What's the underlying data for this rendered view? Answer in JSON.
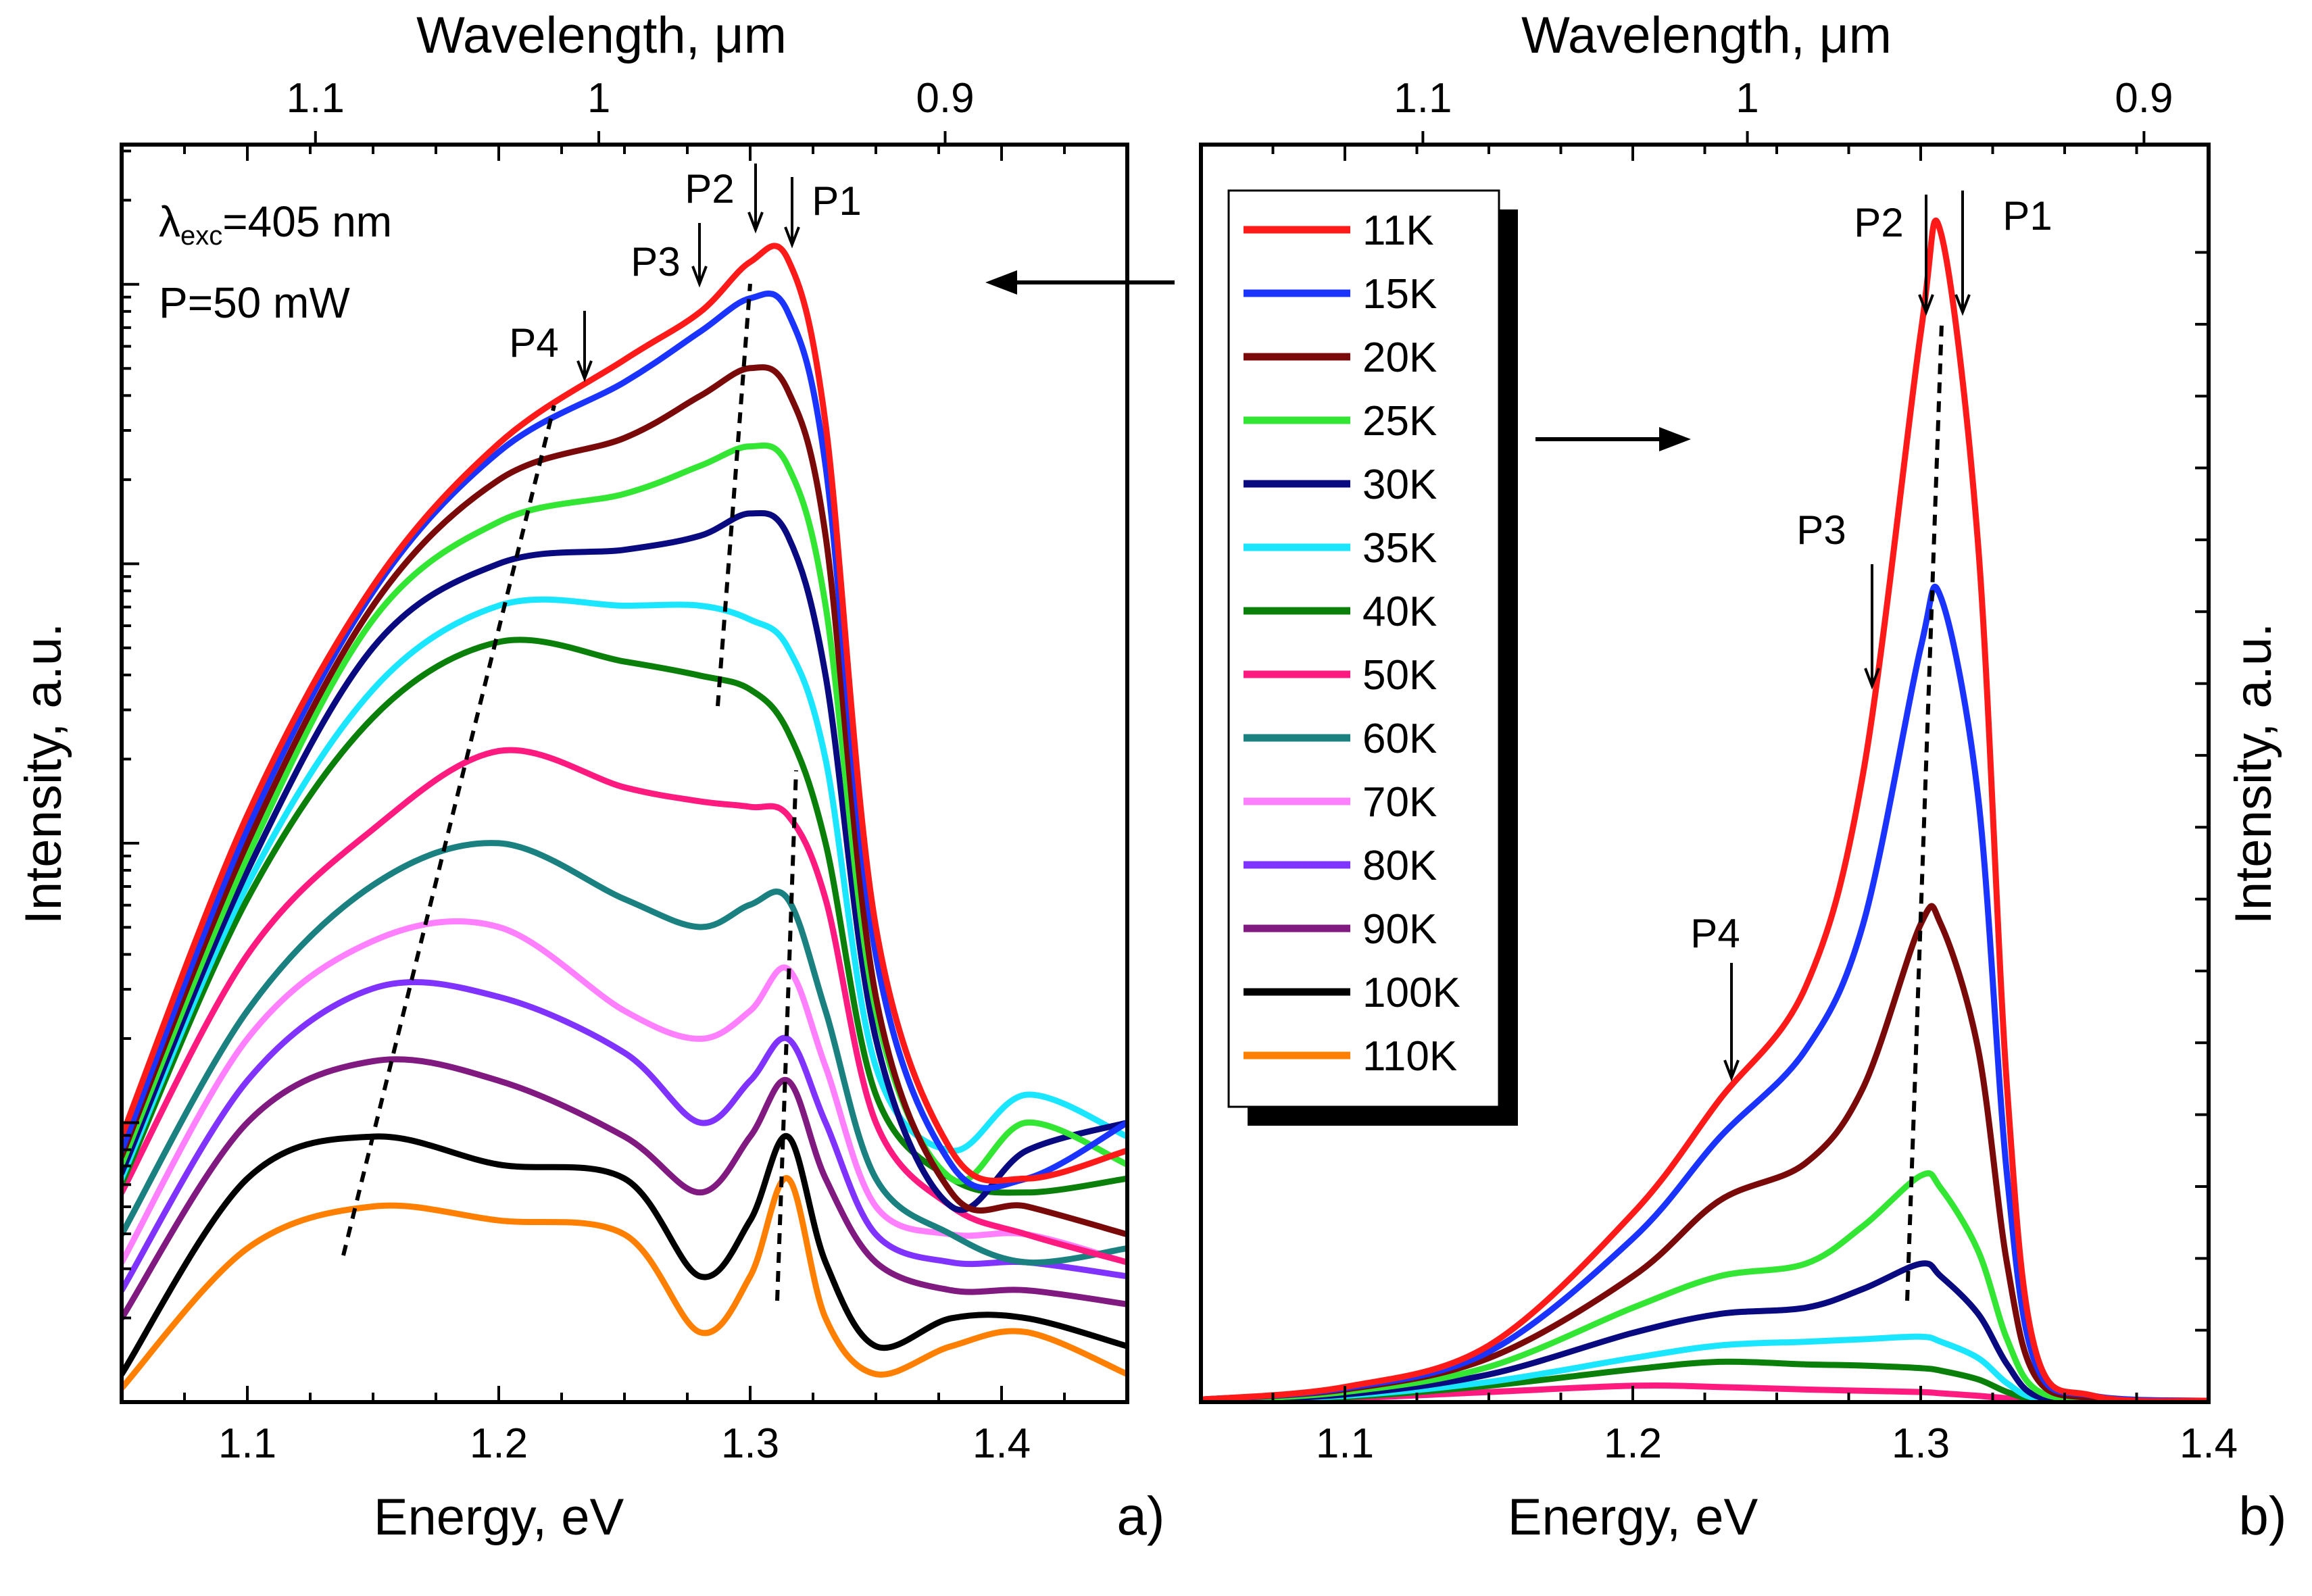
{
  "chart_data": [
    {
      "panel": "a)",
      "type": "line",
      "xlabel": "Energy, eV",
      "ylabel": "Intensity, a.u.",
      "top_xlabel": "Wavelength, μm",
      "yscale": "log",
      "xlim": [
        1.05,
        1.45
      ],
      "ylim_decades": [
        0,
        4.5
      ],
      "x_ticks": [
        "1.1",
        "1.2",
        "1.3",
        "1.4"
      ],
      "top_ticks": [
        "1.1",
        "1",
        "0.9"
      ],
      "annotation_lambda": "λ",
      "annotation_exc": "exc",
      "annotation_lambda_value": "=405 nm",
      "annotation_power": "P=50 mW",
      "peaks": [
        "P1",
        "P2",
        "P3",
        "P4"
      ],
      "x": [
        1.05,
        1.1,
        1.15,
        1.2,
        1.25,
        1.28,
        1.3,
        1.315,
        1.33,
        1.35,
        1.38,
        1.41,
        1.45
      ],
      "series": [
        {
          "name": "11K",
          "color": "#ff1a1a",
          "values": [
            0.95,
            2.1,
            2.92,
            3.43,
            3.73,
            3.9,
            4.08,
            4.09,
            3.5,
            1.7,
            0.9,
            0.8,
            0.9
          ]
        },
        {
          "name": "15K",
          "color": "#1a33ff",
          "values": [
            0.9,
            2.05,
            2.9,
            3.4,
            3.65,
            3.83,
            3.95,
            3.9,
            3.35,
            1.6,
            0.85,
            0.8,
            1.0
          ]
        },
        {
          "name": "20K",
          "color": "#7a0a0a",
          "values": [
            0.88,
            2.0,
            2.85,
            3.3,
            3.45,
            3.6,
            3.7,
            3.62,
            3.1,
            1.45,
            0.75,
            0.7,
            0.6
          ]
        },
        {
          "name": "25K",
          "color": "#33e633",
          "values": [
            0.85,
            1.95,
            2.8,
            3.15,
            3.25,
            3.35,
            3.42,
            3.35,
            2.85,
            1.4,
            0.8,
            1.0,
            0.85
          ]
        },
        {
          "name": "30K",
          "color": "#0a0a80",
          "values": [
            0.82,
            1.9,
            2.7,
            3.0,
            3.05,
            3.1,
            3.18,
            3.1,
            2.6,
            1.3,
            0.7,
            0.9,
            1.0
          ]
        },
        {
          "name": "35K",
          "color": "#1ae6ff",
          "values": [
            0.8,
            1.85,
            2.55,
            2.85,
            2.85,
            2.85,
            2.8,
            2.7,
            2.3,
            1.2,
            0.9,
            1.1,
            0.95
          ]
        },
        {
          "name": "40K",
          "color": "#0a800a",
          "values": [
            0.78,
            1.8,
            2.45,
            2.72,
            2.65,
            2.6,
            2.55,
            2.4,
            2.0,
            1.1,
            0.8,
            0.75,
            0.8
          ]
        },
        {
          "name": "50K",
          "color": "#ff1a80",
          "values": [
            0.75,
            1.6,
            2.05,
            2.33,
            2.2,
            2.15,
            2.13,
            2.1,
            1.8,
            1.0,
            0.7,
            0.6,
            0.5
          ]
        },
        {
          "name": "60K",
          "color": "#1a8080",
          "values": [
            0.6,
            1.4,
            1.85,
            2.0,
            1.8,
            1.7,
            1.78,
            1.8,
            1.4,
            0.8,
            0.6,
            0.5,
            0.55
          ]
        },
        {
          "name": "70K",
          "color": "#ff80ff",
          "values": [
            0.5,
            1.3,
            1.65,
            1.7,
            1.4,
            1.3,
            1.4,
            1.55,
            1.2,
            0.7,
            0.6,
            0.6,
            0.5
          ]
        },
        {
          "name": "80K",
          "color": "#8033ff",
          "values": [
            0.4,
            1.15,
            1.48,
            1.45,
            1.25,
            1.0,
            1.15,
            1.3,
            1.0,
            0.6,
            0.5,
            0.5,
            0.45
          ]
        },
        {
          "name": "90K",
          "color": "#801a80",
          "values": [
            0.3,
            1.0,
            1.22,
            1.15,
            0.95,
            0.75,
            0.95,
            1.15,
            0.8,
            0.5,
            0.4,
            0.4,
            0.35
          ]
        },
        {
          "name": "100K",
          "color": "#000000",
          "values": [
            0.1,
            0.8,
            0.95,
            0.85,
            0.8,
            0.45,
            0.65,
            0.95,
            0.5,
            0.2,
            0.3,
            0.3,
            0.2
          ]
        },
        {
          "name": "110K",
          "color": "#ff8000",
          "values": [
            0.05,
            0.55,
            0.7,
            0.65,
            0.6,
            0.25,
            0.45,
            0.8,
            0.3,
            0.1,
            0.2,
            0.25,
            0.1
          ]
        }
      ]
    },
    {
      "panel": "b)",
      "type": "line",
      "xlabel": "Energy, eV",
      "ylabel": "Intensity, a.u.",
      "top_xlabel": "Wavelength, μm",
      "yscale": "linear",
      "xlim": [
        1.05,
        1.4
      ],
      "ylim": [
        0,
        100
      ],
      "x_ticks": [
        "1.1",
        "1.2",
        "1.3",
        "1.4"
      ],
      "top_ticks": [
        "1.1",
        "1",
        "0.9"
      ],
      "peaks": [
        "P1",
        "P2",
        "P3",
        "P4"
      ],
      "x": [
        1.05,
        1.1,
        1.15,
        1.2,
        1.23,
        1.26,
        1.28,
        1.3,
        1.307,
        1.32,
        1.33,
        1.34,
        1.36,
        1.4
      ],
      "series": [
        {
          "name": "11K",
          "color": "#ff1a1a",
          "values": [
            0.2,
            1.2,
            4.5,
            15,
            24,
            33,
            50,
            85,
            93,
            68,
            25,
            4,
            0.5,
            0.1
          ]
        },
        {
          "name": "15K",
          "color": "#1a33ff",
          "values": [
            0.2,
            1.1,
            4.0,
            13,
            21,
            28,
            38,
            60,
            64,
            48,
            18,
            3,
            0.5,
            0.1
          ]
        },
        {
          "name": "20K",
          "color": "#7a0a0a",
          "values": [
            0.2,
            1.0,
            3.5,
            10,
            16,
            19,
            25,
            38,
            38,
            28,
            11,
            2,
            0.3,
            0.1
          ]
        },
        {
          "name": "25K",
          "color": "#33e633",
          "values": [
            0.1,
            0.8,
            2.8,
            7.5,
            10,
            11,
            14,
            18,
            17,
            12,
            5,
            1,
            0.2,
            0.1
          ]
        },
        {
          "name": "30K",
          "color": "#0a0a80",
          "values": [
            0.1,
            0.6,
            2.2,
            5.5,
            7,
            7.5,
            9,
            11,
            10,
            7,
            3,
            0.5,
            0.2,
            0.1
          ]
        },
        {
          "name": "35K",
          "color": "#1ae6ff",
          "values": [
            0.1,
            0.5,
            1.6,
            3.5,
            4.5,
            4.8,
            5,
            5.2,
            4.8,
            3.5,
            1.5,
            0.3,
            0.1,
            0.1
          ]
        },
        {
          "name": "40K",
          "color": "#0a800a",
          "values": [
            0.1,
            0.4,
            1.3,
            2.6,
            3.2,
            3.0,
            2.9,
            2.7,
            2.5,
            1.8,
            0.8,
            0.2,
            0.1,
            0.1
          ]
        },
        {
          "name": "50K",
          "color": "#ff1a80",
          "values": [
            0.1,
            0.3,
            0.8,
            1.3,
            1.2,
            1.0,
            0.9,
            0.8,
            0.7,
            0.5,
            0.3,
            0.1,
            0.1,
            0.1
          ]
        }
      ]
    }
  ],
  "legend": [
    {
      "label": "11K",
      "color": "#ff1a1a"
    },
    {
      "label": "15K",
      "color": "#1a33ff"
    },
    {
      "label": "20K",
      "color": "#7a0a0a"
    },
    {
      "label": "25K",
      "color": "#33e633"
    },
    {
      "label": "30K",
      "color": "#0a0a80"
    },
    {
      "label": "35K",
      "color": "#1ae6ff"
    },
    {
      "label": "40K",
      "color": "#0a800a"
    },
    {
      "label": "50K",
      "color": "#ff1a80"
    },
    {
      "label": "60K",
      "color": "#1a8080"
    },
    {
      "label": "70K",
      "color": "#ff80ff"
    },
    {
      "label": "80K",
      "color": "#8033ff"
    },
    {
      "label": "90K",
      "color": "#801a80"
    },
    {
      "label": "100K",
      "color": "#000000"
    },
    {
      "label": "110K",
      "color": "#ff8000"
    }
  ]
}
